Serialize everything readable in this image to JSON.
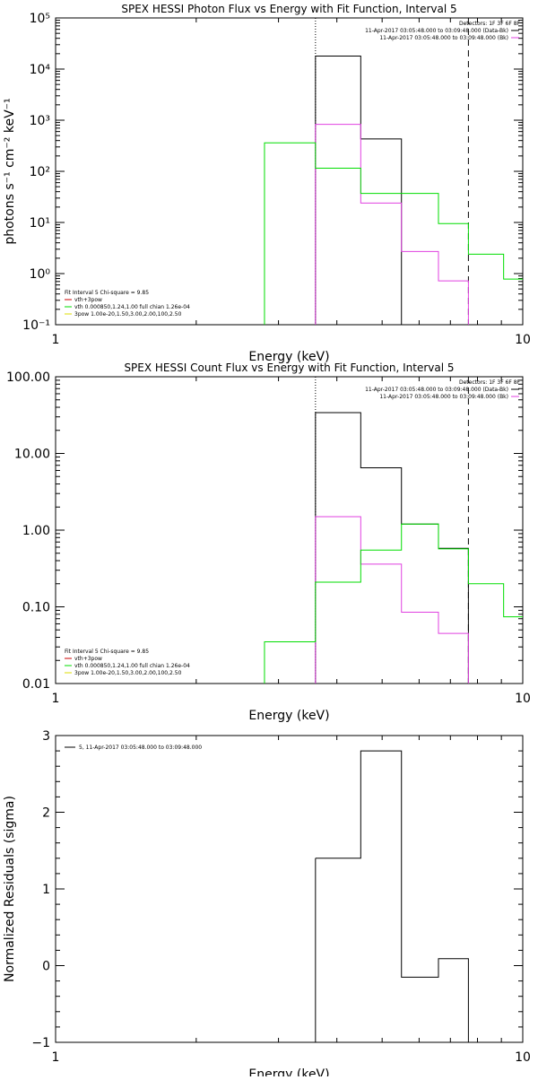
{
  "chart_data": [
    {
      "type": "line",
      "title": "SPEX HESSI Photon Flux vs Energy with Fit Function, Interval 5",
      "xlabel": "Energy (keV)",
      "ylabel": "photons s⁻¹ cm⁻² keV⁻¹",
      "xscale": "log",
      "yscale": "log",
      "xlim": [
        1,
        10
      ],
      "ylim": [
        0.1,
        100000
      ],
      "xticks": [
        1,
        10
      ],
      "xtick_labels": [
        "1",
        "10"
      ],
      "yticks": [
        0.1,
        1,
        10,
        100,
        1000,
        10000,
        100000
      ],
      "ytick_labels": [
        "10⁻¹",
        "10⁰",
        "10¹",
        "10²",
        "10³",
        "10⁴",
        "10⁵"
      ],
      "grid": false,
      "vlines": [
        {
          "x": 3.6,
          "style": "dotted"
        },
        {
          "x": 7.65,
          "style": "dashed"
        }
      ],
      "series": [
        {
          "name": "11-Apr-2017 03:05:48.000 to 03:09:48.000 (Data-Bk)",
          "color": "#000000",
          "edges": [
            3.6,
            4.5,
            5.5
          ],
          "values": [
            18000,
            430
          ]
        },
        {
          "name": "11-Apr-2017 03:05:48.000 to 03:09:48.000 (Bk)",
          "color": "#e040e0",
          "edges": [
            3.6,
            4.5,
            5.5,
            6.6,
            7.65
          ],
          "values": [
            830,
            24,
            2.7,
            0.72
          ]
        },
        {
          "name": "vth 0.000850,1.24,1.00 full chian 1.26e-04",
          "color": "#00dd00",
          "edges": [
            2.8,
            3.6,
            4.5,
            6.6,
            7.65,
            9.1,
            10.5
          ],
          "values": [
            360,
            115,
            37,
            9.5,
            2.4,
            0.78
          ]
        }
      ],
      "detectors_label": "Detectors: 1F 3F 6F 8F",
      "legend_right": [
        {
          "text": "11-Apr-2017 03:05:48.000 to 03:09:48.000 (Data-Bk)",
          "color": "#000000"
        },
        {
          "text": "11-Apr-2017 03:05:48.000 to 03:09:48.000 (Bk)",
          "color": "#e040e0"
        }
      ],
      "legend_left": {
        "header": "Fit Interval 5   Chi-square = 9.85",
        "entries": [
          {
            "text": "vth+3pow",
            "color": "#cc0000"
          },
          {
            "text": "vth 0.000850,1.24,1.00  full chian 1.26e-04",
            "color": "#00dd00"
          },
          {
            "text": "3pow 1.00e-20,1.50,3.00,2.00,100,2.50",
            "color": "#dddd00"
          }
        ]
      }
    },
    {
      "type": "line",
      "title": "SPEX HESSI Count Flux vs Energy with Fit Function, Interval 5",
      "xlabel": "Energy (keV)",
      "ylabel": "",
      "xscale": "log",
      "yscale": "log",
      "xlim": [
        1,
        10
      ],
      "ylim": [
        0.01,
        100
      ],
      "xticks": [
        1,
        10
      ],
      "xtick_labels": [
        "1",
        "10"
      ],
      "yticks": [
        0.01,
        0.1,
        1,
        10,
        100
      ],
      "ytick_labels": [
        "0.01",
        "0.10",
        "1.00",
        "10.00",
        "100.00"
      ],
      "grid": false,
      "vlines": [
        {
          "x": 3.6,
          "style": "dotted"
        },
        {
          "x": 7.65,
          "style": "dashed"
        }
      ],
      "series": [
        {
          "name": "11-Apr-2017 03:05:48.000 to 03:09:48.000 (Data-Bk)",
          "color": "#000000",
          "edges": [
            3.6,
            4.5,
            5.5,
            6.6,
            7.65
          ],
          "values": [
            34,
            6.5,
            1.2,
            0.58
          ]
        },
        {
          "name": "11-Apr-2017 03:05:48.000 to 03:09:48.000 (Bk)",
          "color": "#e040e0",
          "edges": [
            3.6,
            4.5,
            5.5,
            6.6,
            7.65
          ],
          "values": [
            1.5,
            0.36,
            0.085,
            0.045
          ]
        },
        {
          "name": "vth 0.000850,1.24,1.00 full chian 1.26e-04",
          "color": "#00dd00",
          "edges": [
            2.8,
            3.6,
            4.5,
            5.5,
            6.6,
            7.65,
            9.1,
            10.5
          ],
          "values": [
            0.035,
            0.21,
            0.55,
            1.2,
            0.57,
            0.2,
            0.074
          ]
        }
      ],
      "detectors_label": "Detectors: 1F 3F 6F 8F",
      "legend_right": [
        {
          "text": "11-Apr-2017 03:05:48.000 to 03:09:48.000 (Data-Bk)",
          "color": "#000000"
        },
        {
          "text": "11-Apr-2017 03:05:48.000 to 03:09:48.000 (Bk)",
          "color": "#e040e0"
        }
      ],
      "legend_left": {
        "header": "Fit Interval 5   Chi-square = 9.85",
        "entries": [
          {
            "text": "vth+3pow",
            "color": "#cc0000"
          },
          {
            "text": "vth 0.000850,1.24,1.00  full chian 1.26e-04",
            "color": "#00dd00"
          },
          {
            "text": "3pow 1.00e-20,1.50,3.00,2.00,100,2.50",
            "color": "#dddd00"
          }
        ]
      }
    },
    {
      "type": "line",
      "title": "",
      "xlabel": "Energy (keV)",
      "ylabel": "Normalized Residuals (sigma)",
      "xscale": "log",
      "yscale": "linear",
      "xlim": [
        1,
        10
      ],
      "ylim": [
        -1,
        3
      ],
      "xticks": [
        1,
        10
      ],
      "xtick_labels": [
        "1",
        "10"
      ],
      "yticks": [
        -1,
        0,
        1,
        2,
        3
      ],
      "ytick_labels": [
        "−1",
        "0",
        "1",
        "2",
        "3"
      ],
      "grid": false,
      "vlines": [],
      "series": [
        {
          "name": "5, 11-Apr-2017 03:05:48.000 to 03:09:48.000",
          "color": "#000000",
          "edges": [
            3.6,
            4.5,
            5.5,
            6.6,
            7.65
          ],
          "values": [
            1.4,
            2.8,
            -0.15,
            0.09
          ]
        }
      ],
      "legend_left_top": [
        {
          "text": "5, 11-Apr-2017 03:05:48.000 to 03:09:48.000",
          "color": "#000000"
        }
      ]
    }
  ]
}
